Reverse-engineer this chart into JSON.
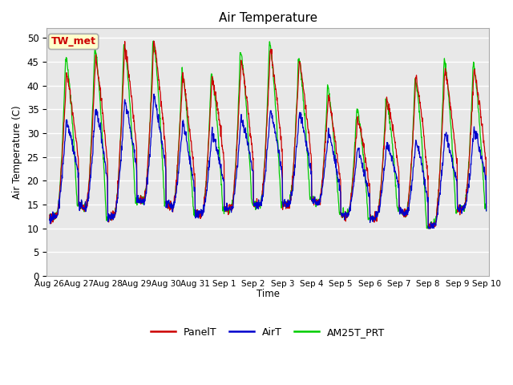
{
  "title": "Air Temperature",
  "ylabel": "Air Temperature (C)",
  "xlabel": "Time",
  "annotation": "TW_met",
  "ylim": [
    0,
    52
  ],
  "yticks": [
    0,
    5,
    10,
    15,
    20,
    25,
    30,
    35,
    40,
    45,
    50
  ],
  "plot_bg_color": "#e8e8e8",
  "grid_color": "white",
  "line_colors": {
    "PanelT": "#cc0000",
    "AirT": "#0000cc",
    "AM25T_PRT": "#00cc00"
  },
  "tick_labels": [
    "Aug 26",
    "Aug 27",
    "Aug 28",
    "Aug 29",
    "Aug 30",
    "Aug 31",
    "Sep 1",
    "Sep 2",
    "Sep 3",
    "Sep 4",
    "Sep 5",
    "Sep 6",
    "Sep 7",
    "Sep 8",
    "Sep 9",
    "Sep 10"
  ],
  "panel_peaks": [
    40,
    44,
    47,
    49.5,
    49.5,
    37,
    45,
    45.5,
    49,
    43,
    34,
    33,
    40,
    43,
    44,
    43
  ],
  "air_peaks": [
    31,
    34,
    36,
    37.5,
    37.5,
    29,
    31,
    35,
    35,
    34,
    28,
    26,
    29,
    28,
    31,
    31
  ],
  "am25_peaks": [
    43,
    48,
    48,
    49.5,
    49.5,
    38.5,
    45,
    49,
    49,
    43.5,
    37,
    34,
    39,
    43,
    47,
    43
  ],
  "troughs": [
    12,
    15,
    12,
    16,
    15,
    13,
    14,
    15,
    15,
    16,
    13,
    12,
    14,
    10,
    14,
    15
  ],
  "n_points": 1440
}
